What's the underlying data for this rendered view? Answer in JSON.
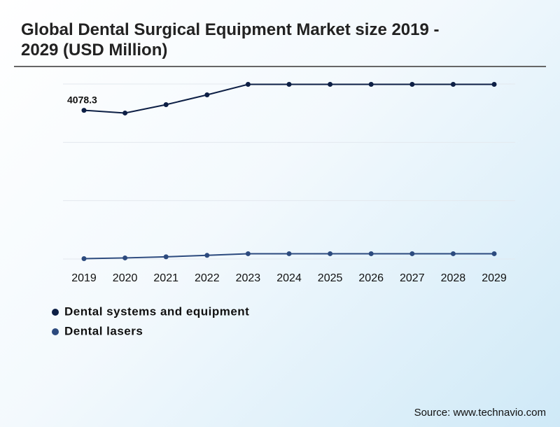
{
  "chart_data": {
    "type": "line",
    "title": "Global Dental Surgical Equipment Market size 2019 - 2029 (USD Million)",
    "categories": [
      "2019",
      "2020",
      "2021",
      "2022",
      "2023",
      "2024",
      "2025",
      "2026",
      "2027",
      "2028",
      "2029"
    ],
    "series": [
      {
        "name": "Dental systems and equipment",
        "color": "#0d1f45",
        "values": [
          4078.3,
          4004,
          4234,
          4503,
          4790,
          4790,
          4790,
          4790,
          4790,
          4790,
          4790
        ],
        "value_labels": [
          "4078.3",
          null,
          null,
          null,
          null,
          null,
          null,
          null,
          null,
          null,
          null
        ]
      },
      {
        "name": "Dental lasers",
        "color": "#2c4a7e",
        "values": [
          10,
          30,
          60,
          100,
          145,
          145,
          145,
          145,
          145,
          145,
          145
        ]
      }
    ],
    "ylim": [
      0,
      4800
    ],
    "yticks": [
      0,
      1600,
      3200,
      4800
    ],
    "show_ytick_labels": false,
    "grid": true,
    "source": "Source: www.technavio.com"
  }
}
